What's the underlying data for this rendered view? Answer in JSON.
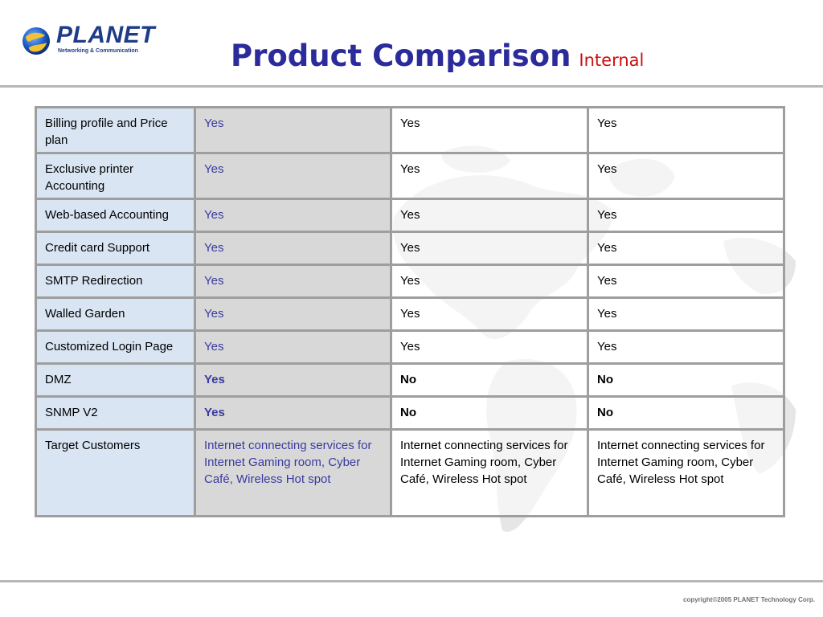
{
  "header": {
    "logo_name": "PLANET",
    "logo_tagline": "Networking & Communication",
    "title": "Product Comparison",
    "subtitle": "Internal"
  },
  "footer": {
    "copyright": "copyright©2005 PLANET Technology Corp."
  },
  "table": {
    "rows": [
      {
        "feature": "Billing profile and Price plan",
        "col1": "Yes",
        "col2": "Yes",
        "col3": "Yes",
        "bold": false
      },
      {
        "feature": "Exclusive printer Accounting",
        "col1": "Yes",
        "col2": "Yes",
        "col3": "Yes",
        "bold": false
      },
      {
        "feature": "Web-based Accounting",
        "col1": "Yes",
        "col2": "Yes",
        "col3": "Yes",
        "bold": false
      },
      {
        "feature": "Credit card Support",
        "col1": "Yes",
        "col2": "Yes",
        "col3": "Yes",
        "bold": false
      },
      {
        "feature": "SMTP Redirection",
        "col1": "Yes",
        "col2": "Yes",
        "col3": "Yes",
        "bold": false
      },
      {
        "feature": "Walled Garden",
        "col1": "Yes",
        "col2": "Yes",
        "col3": "Yes",
        "bold": false
      },
      {
        "feature": "Customized Login Page",
        "col1": "Yes",
        "col2": "Yes",
        "col3": "Yes",
        "bold": false
      },
      {
        "feature": "DMZ",
        "col1": "Yes",
        "col2": "No",
        "col3": "No",
        "bold": true
      },
      {
        "feature": "SNMP V2",
        "col1": "Yes",
        "col2": "No",
        "col3": "No",
        "bold": true
      },
      {
        "feature": "Target Customers",
        "col1": "Internet connecting services for Internet Gaming room, Cyber Café, Wireless Hot spot",
        "col2": "Internet connecting services for Internet Gaming room, Cyber Café, Wireless Hot spot",
        "col3": "Internet connecting services for Internet Gaming room, Cyber Café, Wireless Hot spot",
        "bold": false
      }
    ]
  },
  "colors": {
    "title": "#2b2b9b",
    "subtitle": "#cc1111",
    "highlight_column_text": "#3a3aa0",
    "feature_column_bg": "#d7e4f2",
    "highlight_column_bg": "#d6d6d6",
    "border": "#9e9e9e"
  }
}
